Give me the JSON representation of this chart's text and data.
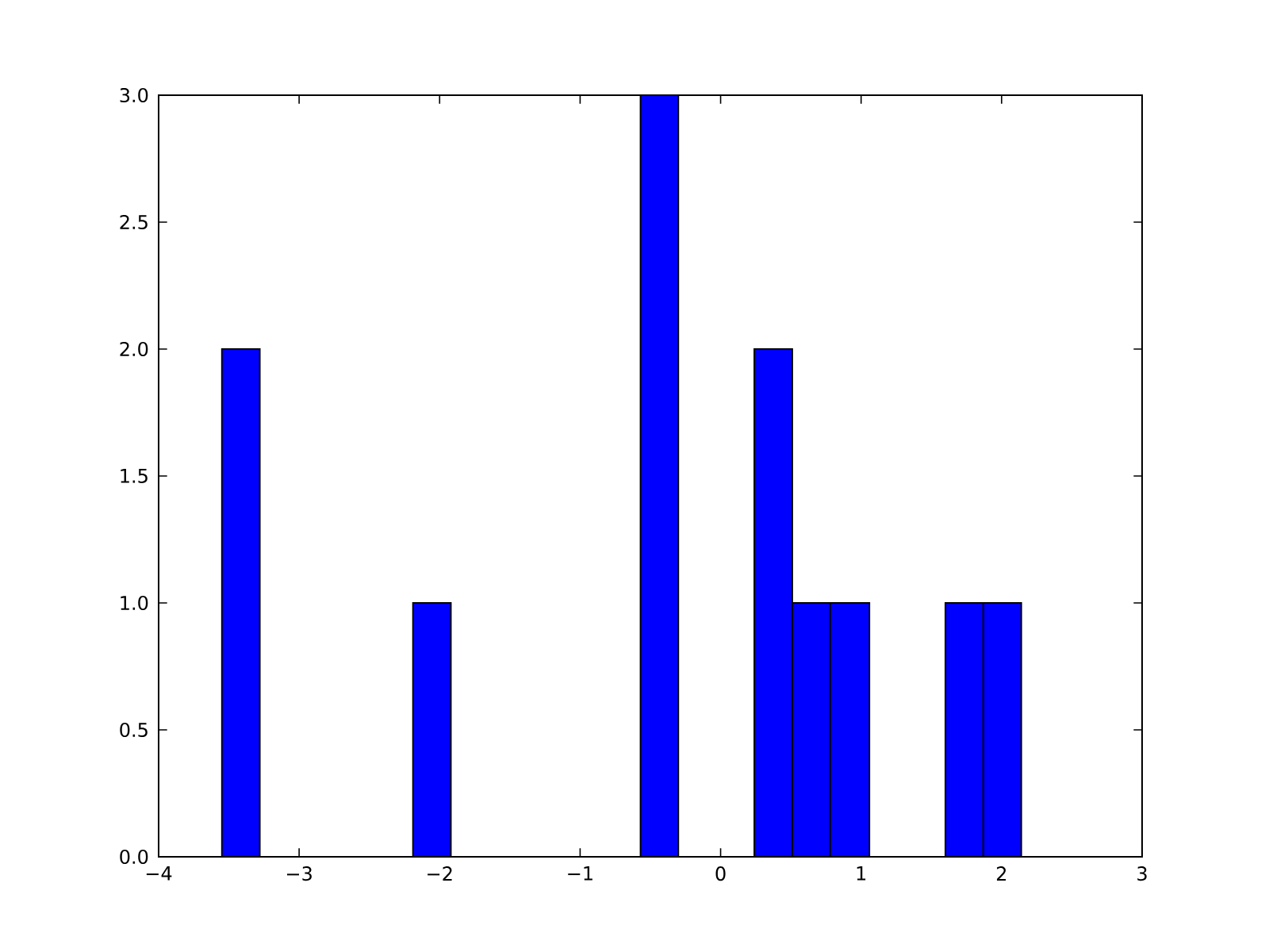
{
  "chart_data": {
    "type": "histogram",
    "bins": [
      -3.55,
      -3.28,
      -2.19,
      -1.92,
      -0.57,
      -0.3,
      0.24,
      0.51,
      0.78,
      1.06,
      1.6,
      1.87,
      2.14
    ],
    "values": [
      2,
      0,
      1,
      0,
      3,
      0,
      2,
      1,
      1,
      0,
      1,
      1
    ],
    "color": "#0000ff",
    "xlim": [
      -4,
      3
    ],
    "ylim": [
      0,
      3
    ],
    "xticks": [
      {
        "value": -4,
        "label": "−4"
      },
      {
        "value": -3,
        "label": "−3"
      },
      {
        "value": -2,
        "label": "−2"
      },
      {
        "value": -1,
        "label": "−1"
      },
      0,
      1,
      2,
      3
    ],
    "yticks": [
      {
        "value": 0,
        "label": "0.0"
      },
      {
        "value": 0.5,
        "label": "0.5"
      },
      {
        "value": 1,
        "label": "1.0"
      },
      {
        "value": 1.5,
        "label": "1.5"
      },
      {
        "value": 2,
        "label": "2.0"
      },
      {
        "value": 2.5,
        "label": "2.5"
      },
      {
        "value": 3,
        "label": "3.0"
      }
    ]
  }
}
